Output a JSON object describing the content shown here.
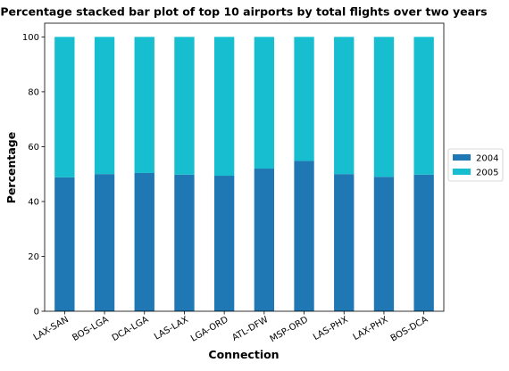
{
  "chart_data": {
    "type": "bar",
    "stacked": true,
    "title": "Percentage stacked bar plot of top 10 airports by total flights over two years",
    "xlabel": "Connection",
    "ylabel": "Percentage",
    "ylim": [
      0,
      105
    ],
    "yticks": [
      0,
      20,
      40,
      60,
      80,
      100
    ],
    "grid": false,
    "legend_position": "right",
    "categories": [
      "LAX-SAN",
      "BOS-LGA",
      "DCA-LGA",
      "LAS-LAX",
      "LGA-ORD",
      "ATL-DFW",
      "MSP-ORD",
      "LAS-PHX",
      "LAX-PHX",
      "BOS-DCA"
    ],
    "series": [
      {
        "name": "2004",
        "color": "#1f77b4",
        "values": [
          48.8,
          50.0,
          50.4,
          49.8,
          49.4,
          52.0,
          54.8,
          50.0,
          49.0,
          49.8
        ]
      },
      {
        "name": "2005",
        "color": "#17becf",
        "values": [
          51.2,
          50.0,
          49.6,
          50.2,
          50.6,
          48.0,
          45.2,
          50.0,
          51.0,
          50.2
        ]
      }
    ]
  }
}
